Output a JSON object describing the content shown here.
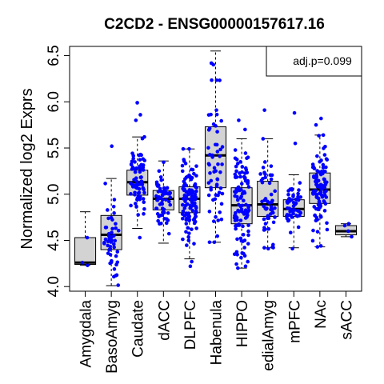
{
  "chart_data": {
    "type": "box",
    "title": "C2CD2 - ENSG00000157617.16",
    "ylabel": "Normalized log2 Exprs",
    "xlabel": "",
    "ylim": [
      3.95,
      6.6
    ],
    "yticks": [
      4.0,
      4.5,
      5.0,
      5.5,
      6.0,
      6.5
    ],
    "ytick_labels": [
      "4.0",
      "4.5",
      "5.0",
      "5.5",
      "6.0",
      "6.5"
    ],
    "annotation": "adj.p=0.099",
    "legend_position": "top-right",
    "grid": false,
    "box_color": "#d3d3d3",
    "point_color": "#0000ff",
    "categories": [
      "Amygdala",
      "BasoAmyg",
      "Caudate",
      "dACC",
      "DLPFC",
      "Habenula",
      "HIPPO",
      "edialAmyg",
      "mPFC",
      "NAc",
      "sACC"
    ],
    "boxes": [
      {
        "name": "Amygdala",
        "min": 4.23,
        "q1": 4.24,
        "median": 4.26,
        "q3": 4.53,
        "max": 4.81,
        "n": 3
      },
      {
        "name": "BasoAmyg",
        "min": 4.01,
        "q1": 4.4,
        "median": 4.56,
        "q3": 4.77,
        "max": 5.17,
        "n": 50
      },
      {
        "name": "Caudate",
        "min": 4.63,
        "q1": 4.99,
        "median": 5.13,
        "q3": 5.26,
        "max": 5.62,
        "n": 70
      },
      {
        "name": "dACC",
        "min": 4.47,
        "q1": 4.83,
        "median": 4.95,
        "q3": 5.04,
        "max": 5.36,
        "n": 60
      },
      {
        "name": "DLPFC",
        "min": 4.3,
        "q1": 4.8,
        "median": 4.95,
        "q3": 5.08,
        "max": 5.49,
        "n": 110
      },
      {
        "name": "Habenula",
        "min": 4.48,
        "q1": 5.07,
        "median": 5.42,
        "q3": 5.73,
        "max": 6.55,
        "n": 60
      },
      {
        "name": "HIPPO",
        "min": 4.2,
        "q1": 4.68,
        "median": 4.88,
        "q3": 5.07,
        "max": 5.6,
        "n": 110
      },
      {
        "name": "edialAmyg",
        "min": 4.42,
        "q1": 4.76,
        "median": 4.89,
        "q3": 5.14,
        "max": 5.6,
        "n": 50
      },
      {
        "name": "mPFC",
        "min": 4.42,
        "q1": 4.76,
        "median": 4.84,
        "q3": 4.94,
        "max": 5.21,
        "n": 50
      },
      {
        "name": "NAc",
        "min": 4.43,
        "q1": 4.9,
        "median": 5.05,
        "q3": 5.23,
        "max": 5.64,
        "n": 95
      },
      {
        "name": "sACC",
        "min": 4.54,
        "q1": 4.56,
        "median": 4.6,
        "q3": 4.66,
        "max": 4.68,
        "n": 4
      }
    ],
    "outliers": [
      {
        "category": "BasoAmyg",
        "values": [
          5.52
        ]
      },
      {
        "category": "Caudate",
        "values": [
          5.99,
          5.86,
          5.8,
          4.53
        ]
      },
      {
        "category": "DLPFC",
        "values": [
          4.22,
          4.27
        ]
      },
      {
        "category": "HIPPO",
        "values": [
          5.8,
          5.7,
          4.22
        ]
      },
      {
        "category": "edialAmyg",
        "values": [
          5.91,
          4.41
        ]
      },
      {
        "category": "mPFC",
        "values": [
          5.88,
          5.55,
          4.41
        ]
      },
      {
        "category": "NAc",
        "values": [
          5.82,
          5.75,
          4.44
        ]
      }
    ]
  }
}
